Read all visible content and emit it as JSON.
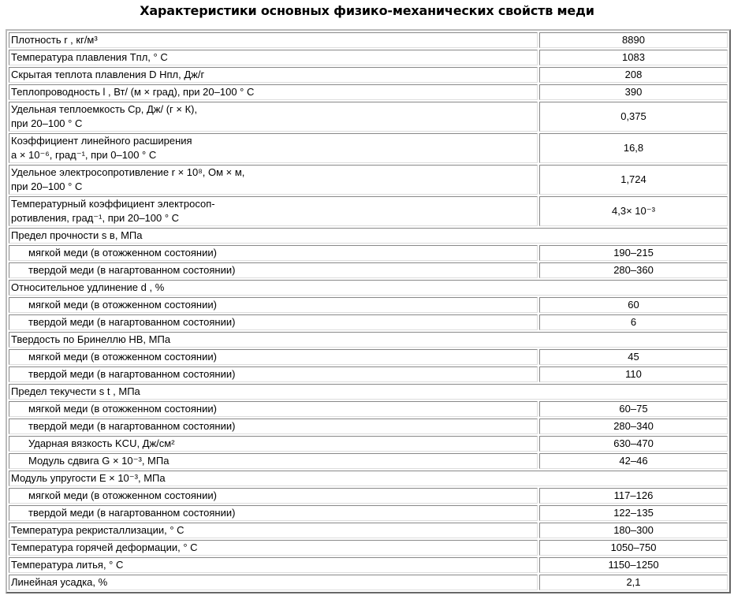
{
  "title": "Характеристики основных физико-механических свойств меди",
  "rows": [
    {
      "type": "row",
      "label": "Плотность r , кг/м³",
      "value": "8890"
    },
    {
      "type": "row",
      "label": "Температура плавления Tпл, ° С",
      "value": "1083"
    },
    {
      "type": "row",
      "label": "Скрытая теплота плавления D Hпл, Дж/г",
      "value": "208"
    },
    {
      "type": "row",
      "label": "Теплопроводность l , Вт/ (м × град), при 20–100 ° С",
      "value": "390"
    },
    {
      "type": "row",
      "label": "Удельная теплоемкость Cp, Дж/ (г × К),\nпри 20–100 ° С",
      "value": "0,375"
    },
    {
      "type": "row",
      "label": "Коэффициент линейного расширения\na × 10⁻⁶, град⁻¹, при 0–100 ° С",
      "value": "16,8"
    },
    {
      "type": "row",
      "label": "Удельное электросопротивление r × 10⁸, Ом × м,\nпри 20–100 ° С",
      "value": "1,724"
    },
    {
      "type": "row",
      "label": "Температурный коэффициент электросоп-\nротивления, град⁻¹, при 20–100 ° С",
      "value": "4,3× 10⁻³"
    },
    {
      "type": "section",
      "label": "Предел прочности s в, МПа"
    },
    {
      "type": "row",
      "indent": true,
      "label": "мягкой меди (в отожженном состоянии)",
      "value": "190–215"
    },
    {
      "type": "row",
      "indent": true,
      "label": "твердой меди (в нагартованном состоянии)",
      "value": "280–360"
    },
    {
      "type": "section",
      "label": "Относительное удлинение d , %"
    },
    {
      "type": "row",
      "indent": true,
      "label": "мягкой меди (в отожженном состоянии)",
      "value": "60"
    },
    {
      "type": "row",
      "indent": true,
      "label": "твердой меди (в нагартованном состоянии)",
      "value": "6"
    },
    {
      "type": "section",
      "label": "Твердость по Бринеллю НВ, МПа"
    },
    {
      "type": "row",
      "indent": true,
      "label": "мягкой меди (в отожженном состоянии)",
      "value": "45"
    },
    {
      "type": "row",
      "indent": true,
      "label": "твердой меди (в нагартованном состоянии)",
      "value": "110"
    },
    {
      "type": "section",
      "label": "Предел текучести s t , МПа"
    },
    {
      "type": "row",
      "indent": true,
      "label": "мягкой меди (в отожженном состоянии)",
      "value": "60–75"
    },
    {
      "type": "row",
      "indent": true,
      "label": "твердой меди (в нагартованном состоянии)",
      "value": "280–340"
    },
    {
      "type": "row",
      "indent": true,
      "label": "Ударная вязкость KCU, Дж/см²",
      "value": "630–470"
    },
    {
      "type": "row",
      "indent": true,
      "label": "Модуль сдвига G × 10⁻³, МПа",
      "value": "42–46"
    },
    {
      "type": "section",
      "label": "Модуль упругости E × 10⁻³, МПа"
    },
    {
      "type": "row",
      "indent": true,
      "label": "мягкой меди (в отожженном состоянии)",
      "value": "117–126"
    },
    {
      "type": "row",
      "indent": true,
      "label": "твердой меди (в нагартованном состоянии)",
      "value": "122–135"
    },
    {
      "type": "row",
      "label": "Температура рекристаллизации, ° С",
      "value": "180–300"
    },
    {
      "type": "row",
      "label": "Температура горячей деформации, ° С",
      "value": "1050–750"
    },
    {
      "type": "row",
      "label": "Температура литья, ° С",
      "value": "1150–1250"
    },
    {
      "type": "row",
      "label": "Линейная усадка, %",
      "value": "2,1"
    }
  ]
}
